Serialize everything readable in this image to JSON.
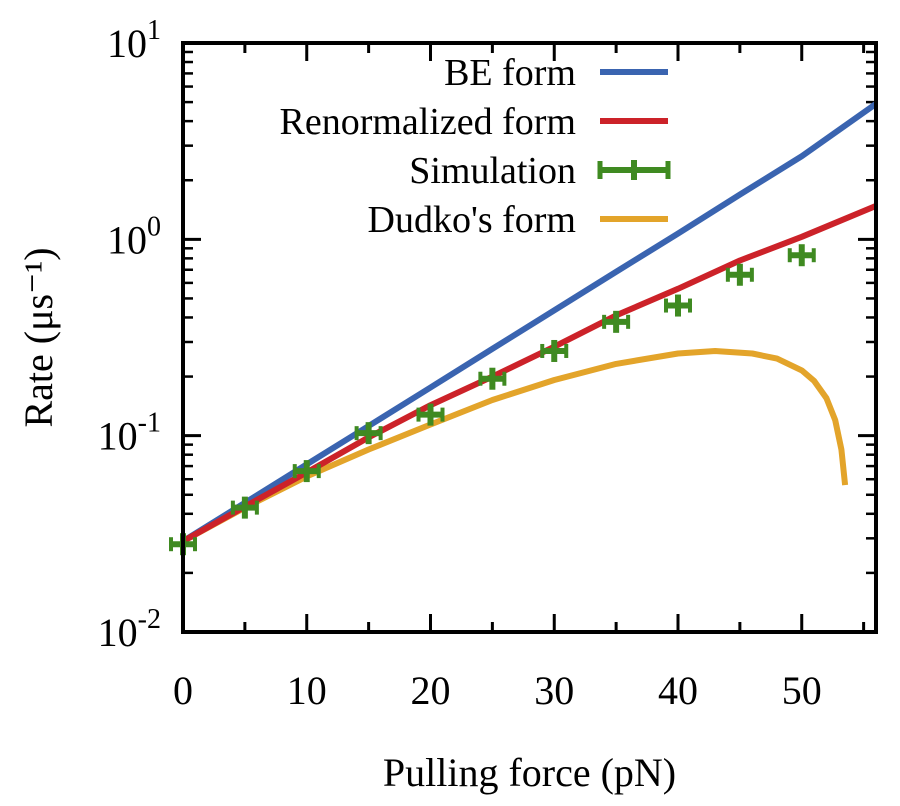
{
  "chart_data": {
    "type": "line",
    "x_label": "Pulling force (pN)",
    "y_label": "Rate (μs⁻¹)",
    "x_range": [
      0,
      56
    ],
    "y_range": [
      0.01,
      10
    ],
    "y_scale": "log",
    "x_ticks": [
      0,
      10,
      20,
      30,
      40,
      50
    ],
    "y_ticks": [
      {
        "value": 0.01,
        "label_base": "10",
        "label_exp": "-2"
      },
      {
        "value": 0.1,
        "label_base": "10",
        "label_exp": "-1"
      },
      {
        "value": 1,
        "label_base": "10",
        "label_exp": "0"
      },
      {
        "value": 10,
        "label_base": "10",
        "label_exp": "1"
      }
    ],
    "legend_position": "top-right",
    "series": [
      {
        "name": "BE form",
        "kind": "line",
        "color": "#3a64b0",
        "x": [
          0,
          5,
          10,
          15,
          20,
          25,
          30,
          35,
          40,
          45,
          50,
          56
        ],
        "y": [
          0.029,
          0.0455,
          0.0715,
          0.112,
          0.176,
          0.277,
          0.435,
          0.683,
          1.07,
          1.69,
          2.65,
          4.9
        ]
      },
      {
        "name": "Renormalized form",
        "kind": "line",
        "color": "#cc2229",
        "x": [
          0,
          5,
          10,
          15,
          20,
          25,
          30,
          35,
          40,
          45,
          50,
          56
        ],
        "y": [
          0.029,
          0.0435,
          0.065,
          0.098,
          0.143,
          0.2,
          0.284,
          0.41,
          0.56,
          0.78,
          1.03,
          1.48
        ]
      },
      {
        "name": "Simulation",
        "kind": "errorbar",
        "color": "#3f8a21",
        "x": [
          0,
          5,
          10,
          15,
          20,
          25,
          30,
          35,
          40,
          45,
          50
        ],
        "y": [
          0.028,
          0.043,
          0.066,
          0.103,
          0.128,
          0.195,
          0.27,
          0.38,
          0.46,
          0.66,
          0.83
        ]
      },
      {
        "name": "Dudko's form",
        "kind": "line",
        "color": "#e3a42a",
        "x": [
          0,
          5,
          10,
          15,
          20,
          25,
          30,
          35,
          40,
          43,
          46,
          48,
          50,
          51,
          52,
          52.7,
          53.2,
          53.5
        ],
        "y": [
          0.029,
          0.043,
          0.062,
          0.085,
          0.114,
          0.152,
          0.192,
          0.232,
          0.262,
          0.27,
          0.262,
          0.247,
          0.215,
          0.19,
          0.155,
          0.12,
          0.085,
          0.056
        ]
      }
    ]
  }
}
